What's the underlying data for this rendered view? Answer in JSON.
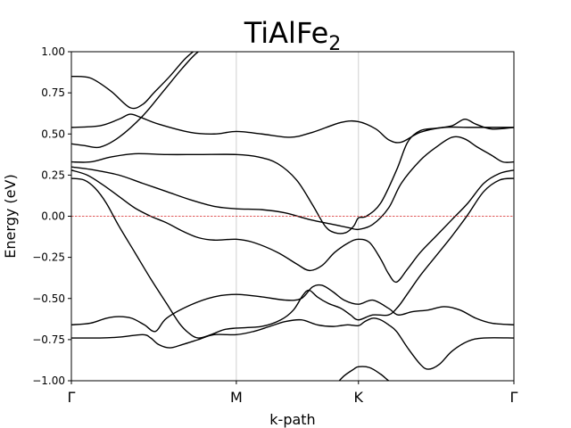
{
  "chart_data": {
    "type": "line",
    "title": {
      "main": "TiAlFe",
      "subscript": "2"
    },
    "xlabel": "k-path",
    "ylabel": "Energy (eV)",
    "xlim": [
      0,
      2.79
    ],
    "ylim": [
      -1.0,
      1.0
    ],
    "x_ticks": [
      {
        "x": 0.0,
        "label": "Γ"
      },
      {
        "x": 1.04,
        "label": "M"
      },
      {
        "x": 1.81,
        "label": "K"
      },
      {
        "x": 2.79,
        "label": "Γ"
      }
    ],
    "y_ticks": [
      {
        "y": 1.0,
        "label": "1.00"
      },
      {
        "y": 0.75,
        "label": "0.75"
      },
      {
        "y": 0.5,
        "label": "0.50"
      },
      {
        "y": 0.25,
        "label": "0.25"
      },
      {
        "y": 0.0,
        "label": "0.00"
      },
      {
        "y": -0.25,
        "label": "−0.25"
      },
      {
        "y": -0.5,
        "label": "−0.50"
      },
      {
        "y": -0.75,
        "label": "−0.75"
      },
      {
        "y": -1.0,
        "label": "−1.00"
      }
    ],
    "fermi_level": {
      "y": 0.0,
      "color": "#d62728",
      "style": "dashed"
    },
    "line_color": "#000000",
    "series": [
      {
        "points": [
          [
            0.0,
            0.85
          ],
          [
            0.12,
            0.84
          ],
          [
            0.25,
            0.76
          ],
          [
            0.37,
            0.66
          ],
          [
            0.45,
            0.68
          ],
          [
            0.52,
            0.75
          ],
          [
            0.62,
            0.85
          ],
          [
            0.72,
            0.96
          ],
          [
            0.82,
            1.04
          ]
        ]
      },
      {
        "points": [
          [
            0.0,
            0.54
          ],
          [
            0.18,
            0.55
          ],
          [
            0.3,
            0.59
          ],
          [
            0.37,
            0.62
          ],
          [
            0.44,
            0.6
          ],
          [
            0.55,
            0.56
          ],
          [
            0.75,
            0.51
          ],
          [
            0.9,
            0.5
          ],
          [
            1.04,
            0.515
          ],
          [
            1.2,
            0.5
          ],
          [
            1.38,
            0.48
          ],
          [
            1.52,
            0.51
          ],
          [
            1.7,
            0.57
          ],
          [
            1.81,
            0.575
          ],
          [
            1.92,
            0.53
          ],
          [
            2.0,
            0.465
          ],
          [
            2.08,
            0.45
          ],
          [
            2.2,
            0.51
          ],
          [
            2.35,
            0.54
          ],
          [
            2.5,
            0.54
          ],
          [
            2.6,
            0.54
          ],
          [
            2.79,
            0.54
          ]
        ]
      },
      {
        "points": [
          [
            0.0,
            0.44
          ],
          [
            0.08,
            0.43
          ],
          [
            0.18,
            0.42
          ],
          [
            0.3,
            0.48
          ],
          [
            0.45,
            0.61
          ],
          [
            0.58,
            0.76
          ],
          [
            0.7,
            0.9
          ],
          [
            0.8,
            1.0
          ],
          [
            0.9,
            1.04
          ]
        ]
      },
      {
        "points": [
          [
            0.0,
            0.33
          ],
          [
            0.12,
            0.33
          ],
          [
            0.25,
            0.36
          ],
          [
            0.4,
            0.38
          ],
          [
            0.6,
            0.375
          ],
          [
            0.8,
            0.375
          ],
          [
            1.04,
            0.375
          ],
          [
            1.18,
            0.36
          ],
          [
            1.3,
            0.32
          ],
          [
            1.42,
            0.22
          ],
          [
            1.52,
            0.07
          ],
          [
            1.6,
            -0.06
          ],
          [
            1.66,
            -0.1
          ],
          [
            1.73,
            -0.1
          ],
          [
            1.78,
            -0.06
          ],
          [
            1.81,
            -0.01
          ],
          [
            1.86,
            0.0
          ],
          [
            1.95,
            0.08
          ],
          [
            2.05,
            0.28
          ],
          [
            2.12,
            0.45
          ],
          [
            2.2,
            0.52
          ],
          [
            2.3,
            0.535
          ],
          [
            2.4,
            0.55
          ],
          [
            2.48,
            0.59
          ],
          [
            2.55,
            0.56
          ],
          [
            2.65,
            0.53
          ],
          [
            2.79,
            0.54
          ]
        ]
      },
      {
        "points": [
          [
            0.0,
            0.3
          ],
          [
            0.15,
            0.28
          ],
          [
            0.3,
            0.25
          ],
          [
            0.45,
            0.2
          ],
          [
            0.6,
            0.15
          ],
          [
            0.75,
            0.1
          ],
          [
            0.9,
            0.06
          ],
          [
            1.04,
            0.045
          ],
          [
            1.2,
            0.04
          ],
          [
            1.35,
            0.02
          ],
          [
            1.5,
            -0.02
          ],
          [
            1.65,
            -0.05
          ],
          [
            1.75,
            -0.07
          ],
          [
            1.81,
            -0.08
          ],
          [
            1.9,
            -0.05
          ],
          [
            2.0,
            0.05
          ],
          [
            2.08,
            0.2
          ],
          [
            2.2,
            0.34
          ],
          [
            2.3,
            0.42
          ],
          [
            2.4,
            0.48
          ],
          [
            2.48,
            0.47
          ],
          [
            2.56,
            0.42
          ],
          [
            2.65,
            0.37
          ],
          [
            2.72,
            0.33
          ],
          [
            2.79,
            0.33
          ]
        ]
      },
      {
        "points": [
          [
            0.0,
            0.28
          ],
          [
            0.1,
            0.25
          ],
          [
            0.2,
            0.19
          ],
          [
            0.3,
            0.12
          ],
          [
            0.4,
            0.05
          ],
          [
            0.5,
            -0.0
          ],
          [
            0.6,
            -0.04
          ],
          [
            0.7,
            -0.09
          ],
          [
            0.8,
            -0.13
          ],
          [
            0.9,
            -0.145
          ],
          [
            1.04,
            -0.14
          ],
          [
            1.15,
            -0.16
          ],
          [
            1.3,
            -0.22
          ],
          [
            1.42,
            -0.29
          ],
          [
            1.5,
            -0.33
          ],
          [
            1.58,
            -0.3
          ],
          [
            1.66,
            -0.22
          ],
          [
            1.75,
            -0.16
          ],
          [
            1.81,
            -0.14
          ],
          [
            1.88,
            -0.16
          ],
          [
            1.95,
            -0.26
          ],
          [
            2.0,
            -0.35
          ],
          [
            2.05,
            -0.4
          ],
          [
            2.12,
            -0.32
          ],
          [
            2.2,
            -0.22
          ],
          [
            2.3,
            -0.12
          ],
          [
            2.4,
            -0.02
          ],
          [
            2.5,
            0.08
          ],
          [
            2.6,
            0.2
          ],
          [
            2.7,
            0.26
          ],
          [
            2.79,
            0.28
          ]
        ]
      },
      {
        "points": [
          [
            0.0,
            0.23
          ],
          [
            0.08,
            0.22
          ],
          [
            0.15,
            0.17
          ],
          [
            0.22,
            0.08
          ],
          [
            0.3,
            -0.06
          ],
          [
            0.4,
            -0.22
          ],
          [
            0.5,
            -0.38
          ],
          [
            0.6,
            -0.53
          ],
          [
            0.68,
            -0.65
          ],
          [
            0.74,
            -0.71
          ],
          [
            0.8,
            -0.74
          ],
          [
            0.88,
            -0.72
          ],
          [
            0.96,
            -0.69
          ],
          [
            1.04,
            -0.68
          ],
          [
            1.2,
            -0.67
          ],
          [
            1.32,
            -0.63
          ],
          [
            1.4,
            -0.57
          ],
          [
            1.46,
            -0.48
          ],
          [
            1.5,
            -0.45
          ],
          [
            1.55,
            -0.49
          ],
          [
            1.62,
            -0.53
          ],
          [
            1.7,
            -0.56
          ],
          [
            1.76,
            -0.6
          ],
          [
            1.81,
            -0.63
          ],
          [
            1.9,
            -0.6
          ],
          [
            2.0,
            -0.6
          ],
          [
            2.06,
            -0.55
          ],
          [
            2.12,
            -0.47
          ],
          [
            2.2,
            -0.36
          ],
          [
            2.3,
            -0.24
          ],
          [
            2.4,
            -0.12
          ],
          [
            2.5,
            0.01
          ],
          [
            2.6,
            0.15
          ],
          [
            2.7,
            0.22
          ],
          [
            2.79,
            0.23
          ]
        ]
      },
      {
        "points": [
          [
            0.0,
            -0.66
          ],
          [
            0.12,
            -0.65
          ],
          [
            0.22,
            -0.62
          ],
          [
            0.3,
            -0.61
          ],
          [
            0.38,
            -0.62
          ],
          [
            0.46,
            -0.66
          ],
          [
            0.53,
            -0.7
          ],
          [
            0.6,
            -0.62
          ],
          [
            0.75,
            -0.54
          ],
          [
            0.9,
            -0.49
          ],
          [
            1.04,
            -0.475
          ],
          [
            1.2,
            -0.49
          ],
          [
            1.35,
            -0.51
          ],
          [
            1.45,
            -0.5
          ],
          [
            1.52,
            -0.43
          ],
          [
            1.58,
            -0.42
          ],
          [
            1.65,
            -0.46
          ],
          [
            1.72,
            -0.51
          ],
          [
            1.81,
            -0.535
          ],
          [
            1.9,
            -0.51
          ],
          [
            2.0,
            -0.56
          ],
          [
            2.06,
            -0.6
          ],
          [
            2.15,
            -0.58
          ],
          [
            2.25,
            -0.57
          ],
          [
            2.35,
            -0.55
          ],
          [
            2.45,
            -0.57
          ],
          [
            2.55,
            -0.62
          ],
          [
            2.65,
            -0.65
          ],
          [
            2.79,
            -0.66
          ]
        ]
      },
      {
        "points": [
          [
            0.0,
            -0.74
          ],
          [
            0.18,
            -0.74
          ],
          [
            0.3,
            -0.735
          ],
          [
            0.45,
            -0.72
          ],
          [
            0.5,
            -0.74
          ],
          [
            0.55,
            -0.78
          ],
          [
            0.62,
            -0.8
          ],
          [
            0.7,
            -0.78
          ],
          [
            0.8,
            -0.75
          ],
          [
            0.9,
            -0.72
          ],
          [
            1.04,
            -0.72
          ],
          [
            1.15,
            -0.7
          ],
          [
            1.25,
            -0.67
          ],
          [
            1.35,
            -0.64
          ],
          [
            1.45,
            -0.63
          ],
          [
            1.55,
            -0.66
          ],
          [
            1.65,
            -0.67
          ],
          [
            1.74,
            -0.66
          ],
          [
            1.81,
            -0.665
          ],
          [
            1.85,
            -0.64
          ],
          [
            1.9,
            -0.62
          ],
          [
            1.95,
            -0.63
          ],
          [
            2.0,
            -0.66
          ],
          [
            2.05,
            -0.7
          ],
          [
            2.12,
            -0.8
          ],
          [
            2.2,
            -0.9
          ],
          [
            2.25,
            -0.93
          ],
          [
            2.32,
            -0.9
          ],
          [
            2.4,
            -0.82
          ],
          [
            2.5,
            -0.76
          ],
          [
            2.6,
            -0.74
          ],
          [
            2.79,
            -0.74
          ]
        ]
      },
      {
        "points": [
          [
            1.66,
            -1.03
          ],
          [
            1.72,
            -0.97
          ],
          [
            1.78,
            -0.93
          ],
          [
            1.81,
            -0.915
          ],
          [
            1.88,
            -0.92
          ],
          [
            1.95,
            -0.96
          ],
          [
            2.0,
            -1.0
          ],
          [
            2.05,
            -1.03
          ]
        ]
      }
    ]
  }
}
